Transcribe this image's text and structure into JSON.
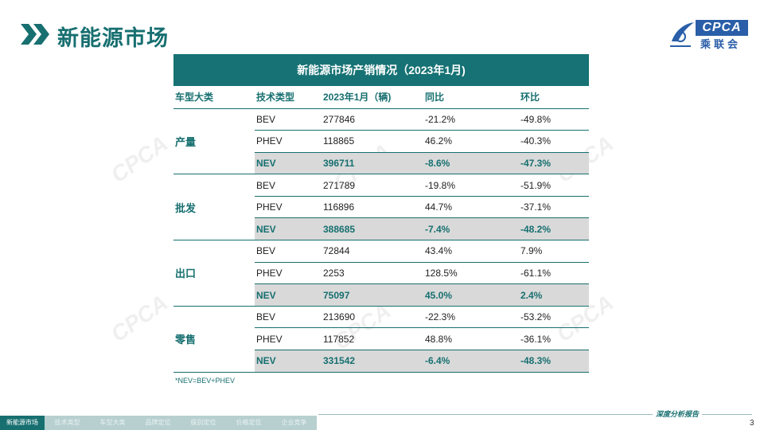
{
  "header": {
    "title": "新能源市场",
    "logo_text": "CPCA",
    "logo_cn": "乘联会"
  },
  "table": {
    "title": "新能源市场产销情况（2023年1月)",
    "headers": [
      "车型大类",
      "技术类型",
      "2023年1月（辆)",
      "同比",
      "环比"
    ],
    "groups": [
      {
        "name": "产量",
        "rows": [
          {
            "type": "BEV",
            "value": "277846",
            "yoy": "-21.2%",
            "mom": "-49.8%"
          },
          {
            "type": "PHEV",
            "value": "118865",
            "yoy": "46.2%",
            "mom": "-40.3%"
          },
          {
            "type": "NEV",
            "value": "396711",
            "yoy": "-8.6%",
            "mom": "-47.3%"
          }
        ]
      },
      {
        "name": "批发",
        "rows": [
          {
            "type": "BEV",
            "value": "271789",
            "yoy": "-19.8%",
            "mom": "-51.9%"
          },
          {
            "type": "PHEV",
            "value": "116896",
            "yoy": "44.7%",
            "mom": "-37.1%"
          },
          {
            "type": "NEV",
            "value": "388685",
            "yoy": "-7.4%",
            "mom": "-48.2%"
          }
        ]
      },
      {
        "name": "出口",
        "rows": [
          {
            "type": "BEV",
            "value": "72844",
            "yoy": "43.4%",
            "mom": "7.9%"
          },
          {
            "type": "PHEV",
            "value": "2253",
            "yoy": "128.5%",
            "mom": "-61.1%"
          },
          {
            "type": "NEV",
            "value": "75097",
            "yoy": "45.0%",
            "mom": "2.4%"
          }
        ]
      },
      {
        "name": "零售",
        "rows": [
          {
            "type": "BEV",
            "value": "213690",
            "yoy": "-22.3%",
            "mom": "-53.2%"
          },
          {
            "type": "PHEV",
            "value": "117852",
            "yoy": "48.8%",
            "mom": "-36.1%"
          },
          {
            "type": "NEV",
            "value": "331542",
            "yoy": "-6.4%",
            "mom": "-48.3%"
          }
        ]
      }
    ],
    "footnote": "*NEV=BEV+PHEV"
  },
  "footer": {
    "slogan": "深度分析报告",
    "page_number": "3",
    "tabs": [
      "新能源市场",
      "技术类型",
      "车型大类",
      "品牌定位",
      "级别定位",
      "价格定位",
      "企业竞争"
    ],
    "active_tab": 0
  },
  "colors": {
    "accent": "#176f70",
    "table_header_bg": "#167274",
    "nev_row_bg": "#d9d9d9",
    "logo_blue": "#2a5ea8"
  },
  "icons": [
    "chevron-double-right-icon",
    "cpca-logo-icon"
  ]
}
